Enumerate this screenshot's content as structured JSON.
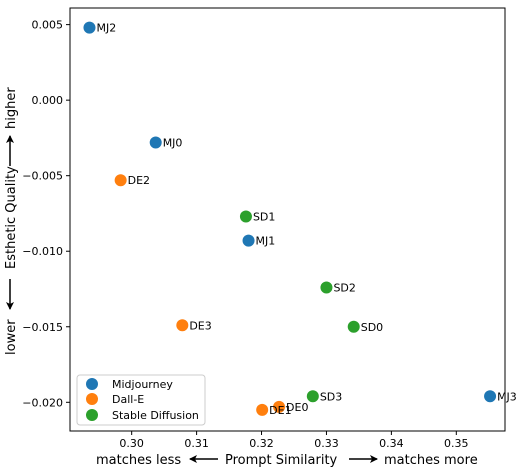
{
  "chart_data": {
    "type": "scatter",
    "title": "",
    "xlabel": "Prompt Similarity",
    "xlabel_left": "matches less",
    "xlabel_right": "matches more",
    "ylabel": "Esthetic Quality",
    "ylabel_low": "lower",
    "ylabel_high": "higher",
    "xlim": [
      0.2905,
      0.3575
    ],
    "ylim": [
      -0.0219,
      0.0061
    ],
    "xticks": [
      0.3,
      0.31,
      0.32,
      0.33,
      0.34,
      0.35
    ],
    "xtick_labels": [
      "0.30",
      "0.31",
      "0.32",
      "0.33",
      "0.34",
      "0.35"
    ],
    "yticks": [
      0.005,
      0.0,
      -0.005,
      -0.01,
      -0.015,
      -0.02
    ],
    "ytick_labels": [
      "0.005",
      "0.000",
      "−0.005",
      "−0.010",
      "−0.015",
      "−0.020"
    ],
    "grid": false,
    "legend_position": "lower-left",
    "series": [
      {
        "name": "Midjourney",
        "color": "#1f77b4",
        "points": [
          {
            "label": "MJ2",
            "x": 0.2935,
            "y": 0.0048
          },
          {
            "label": "MJ0",
            "x": 0.3037,
            "y": -0.0028
          },
          {
            "label": "MJ1",
            "x": 0.318,
            "y": -0.0093
          },
          {
            "label": "MJ3",
            "x": 0.3552,
            "y": -0.0196
          }
        ]
      },
      {
        "name": "Dall-E",
        "color": "#ff7f0e",
        "points": [
          {
            "label": "DE2",
            "x": 0.2983,
            "y": -0.0053
          },
          {
            "label": "DE3",
            "x": 0.3078,
            "y": -0.0149
          },
          {
            "label": "DE1",
            "x": 0.3201,
            "y": -0.0205
          },
          {
            "label": "DE0",
            "x": 0.3227,
            "y": -0.0203
          }
        ]
      },
      {
        "name": "Stable Diffusion",
        "color": "#2ca02c",
        "points": [
          {
            "label": "SD1",
            "x": 0.3176,
            "y": -0.0077
          },
          {
            "label": "SD2",
            "x": 0.33,
            "y": -0.0124
          },
          {
            "label": "SD0",
            "x": 0.3342,
            "y": -0.015
          },
          {
            "label": "SD3",
            "x": 0.3279,
            "y": -0.0196
          }
        ]
      }
    ]
  }
}
